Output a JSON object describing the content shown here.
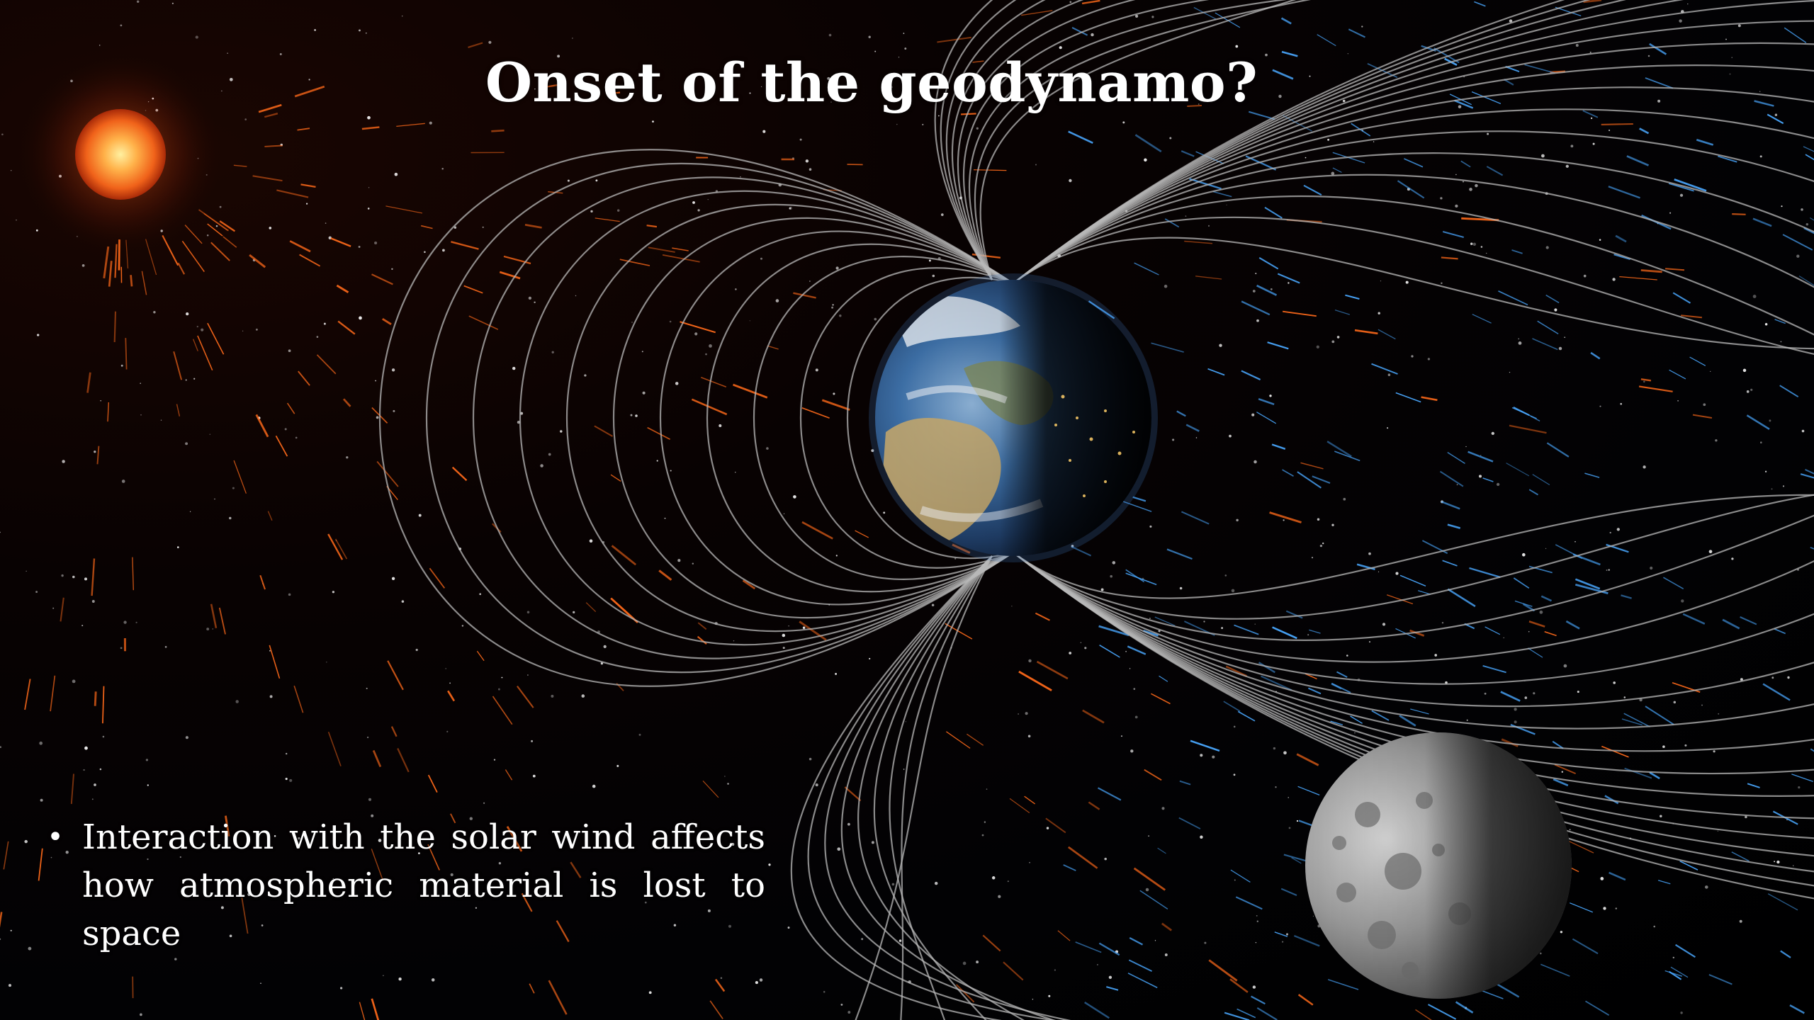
{
  "slide": {
    "title": "Onset of the geodynamo?",
    "bullets": [
      {
        "text": "Interaction with the solar wind affects how atmospheric material is lost to space"
      }
    ]
  },
  "scene": {
    "objects": [
      "sun",
      "earth",
      "moon",
      "magnetic-field-lines",
      "solar-wind-particles",
      "starfield"
    ],
    "colors": {
      "sun_core": "#ffb24a",
      "sun_edge": "#e2480f",
      "solar_wind": "#ff6a1a",
      "deflected_wind": "#4aa8ff",
      "field_lines": "#b8b8b8",
      "ocean": "#1f4e8a",
      "moon": "#9a9a9a"
    }
  }
}
